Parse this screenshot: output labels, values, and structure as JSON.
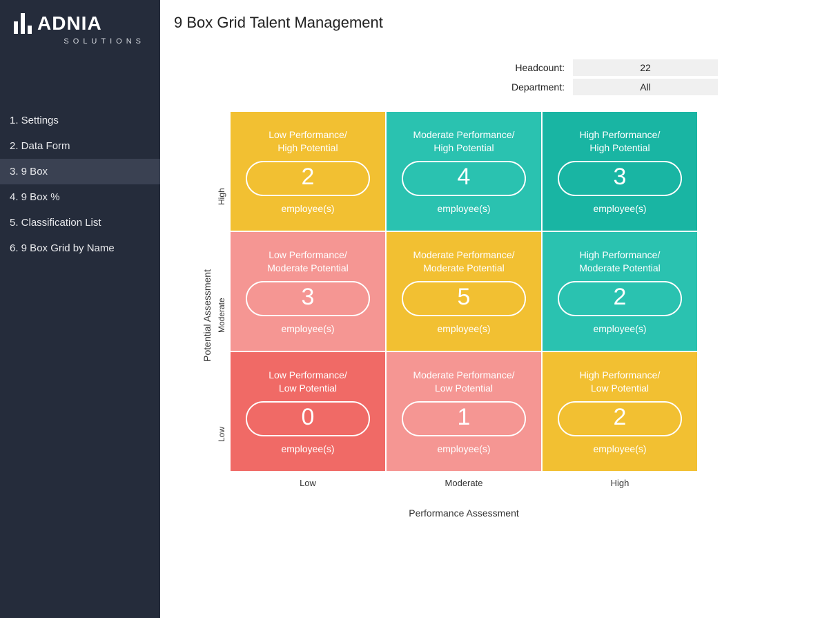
{
  "brand": {
    "name": "ADNIA",
    "tagline": "SOLUTIONS"
  },
  "nav": {
    "items": [
      {
        "label": "1. Settings",
        "active": false
      },
      {
        "label": "2. Data Form",
        "active": false
      },
      {
        "label": "3. 9 Box",
        "active": true
      },
      {
        "label": "4. 9 Box %",
        "active": false
      },
      {
        "label": "5. Classification List",
        "active": false
      },
      {
        "label": "6. 9 Box Grid by Name",
        "active": false
      }
    ]
  },
  "page": {
    "title": "9 Box Grid Talent Management"
  },
  "meta": {
    "headcount_label": "Headcount:",
    "headcount_value": "22",
    "department_label": "Department:",
    "department_value": "All"
  },
  "grid": {
    "y_axis_title": "Potential Assessment",
    "x_axis_title": "Performance Assessment",
    "y_ticks": [
      "High",
      "Moderate",
      "Low"
    ],
    "x_ticks": [
      "Low",
      "Moderate",
      "High"
    ],
    "unit_label": "employee(s)",
    "colors": {
      "yellow": "#f2c032",
      "teal": "#2ac2b0",
      "teal_dark": "#19b5a3",
      "pink": "#f59693",
      "red": "#f06a66"
    },
    "cells": [
      [
        {
          "title_l1": "Low Performance/",
          "title_l2": "High Potential",
          "value": 2,
          "color": "#f2c032"
        },
        {
          "title_l1": "Moderate Performance/",
          "title_l2": "High Potential",
          "value": 4,
          "color": "#2ac2b0"
        },
        {
          "title_l1": "High Performance/",
          "title_l2": "High Potential",
          "value": 3,
          "color": "#19b5a3"
        }
      ],
      [
        {
          "title_l1": "Low Performance/",
          "title_l2": "Moderate Potential",
          "value": 3,
          "color": "#f59693"
        },
        {
          "title_l1": "Moderate Performance/",
          "title_l2": "Moderate Potential",
          "value": 5,
          "color": "#f2c032"
        },
        {
          "title_l1": "High Performance/",
          "title_l2": "Moderate Potential",
          "value": 2,
          "color": "#2ac2b0"
        }
      ],
      [
        {
          "title_l1": "Low Performance/",
          "title_l2": "Low Potential",
          "value": 0,
          "color": "#f06a66"
        },
        {
          "title_l1": "Moderate Performance/",
          "title_l2": "Low Potential",
          "value": 1,
          "color": "#f59693"
        },
        {
          "title_l1": "High Performance/",
          "title_l2": "Low Potential",
          "value": 2,
          "color": "#f2c032"
        }
      ]
    ]
  }
}
